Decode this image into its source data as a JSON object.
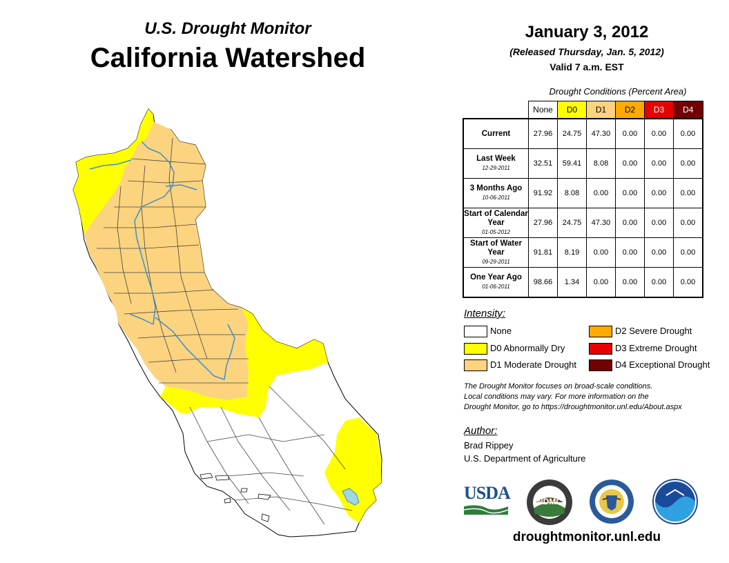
{
  "header": {
    "subtitle": "U.S. Drought Monitor",
    "title": "California Watershed",
    "date": "January 3, 2012",
    "released": "(Released Thursday, Jan. 5, 2012)",
    "valid": "Valid 7 a.m. EST"
  },
  "table": {
    "caption": "Drought Conditions (Percent Area)",
    "columns": [
      "None",
      "D0",
      "D1",
      "D2",
      "D3",
      "D4"
    ],
    "column_colors": [
      "#ffffff",
      "#ffff00",
      "#fcd37f",
      "#ffaa00",
      "#e60000",
      "#730000"
    ],
    "rows": [
      {
        "label": "Current",
        "date": "",
        "values": [
          "27.96",
          "24.75",
          "47.30",
          "0.00",
          "0.00",
          "0.00"
        ]
      },
      {
        "label": "Last Week",
        "date": "12-29-2011",
        "values": [
          "32.51",
          "59.41",
          "8.08",
          "0.00",
          "0.00",
          "0.00"
        ]
      },
      {
        "label": "3 Months Ago",
        "date": "10-06-2011",
        "values": [
          "91.92",
          "8.08",
          "0.00",
          "0.00",
          "0.00",
          "0.00"
        ]
      },
      {
        "label": "Start of Calendar Year",
        "date": "01-05-2012",
        "values": [
          "27.96",
          "24.75",
          "47.30",
          "0.00",
          "0.00",
          "0.00"
        ]
      },
      {
        "label": "Start of Water Year",
        "date": "09-29-2011",
        "values": [
          "91.81",
          "8.19",
          "0.00",
          "0.00",
          "0.00",
          "0.00"
        ]
      },
      {
        "label": "One Year Ago",
        "date": "01-06-2011",
        "values": [
          "98.66",
          "1.34",
          "0.00",
          "0.00",
          "0.00",
          "0.00"
        ]
      }
    ]
  },
  "legend": {
    "heading": "Intensity:",
    "items": [
      {
        "label": "None",
        "color": "#ffffff"
      },
      {
        "label": "D0 Abnormally Dry",
        "color": "#ffff00"
      },
      {
        "label": "D1 Moderate Drought",
        "color": "#fcd37f"
      },
      {
        "label": "D2 Severe Drought",
        "color": "#ffaa00"
      },
      {
        "label": "D3 Extreme Drought",
        "color": "#e60000"
      },
      {
        "label": "D4 Exceptional Drought",
        "color": "#730000"
      }
    ]
  },
  "note": {
    "line1": "The Drought Monitor focuses on broad-scale conditions.",
    "line2": "Local conditions may vary. For more information on the",
    "line3": "Drought Monitor, go to https://droughtmonitor.unl.edu/About.aspx"
  },
  "author": {
    "heading": "Author:",
    "name": "Brad Rippey",
    "org": "U.S. Department of Agriculture"
  },
  "logos": {
    "usda": "USDA",
    "ndmc": "NDMC"
  },
  "footer": {
    "url": "droughtmonitor.unl.edu"
  },
  "icons": [
    "usda-logo-icon",
    "ndmc-logo-icon",
    "doc-seal-icon",
    "noaa-logo-icon"
  ]
}
